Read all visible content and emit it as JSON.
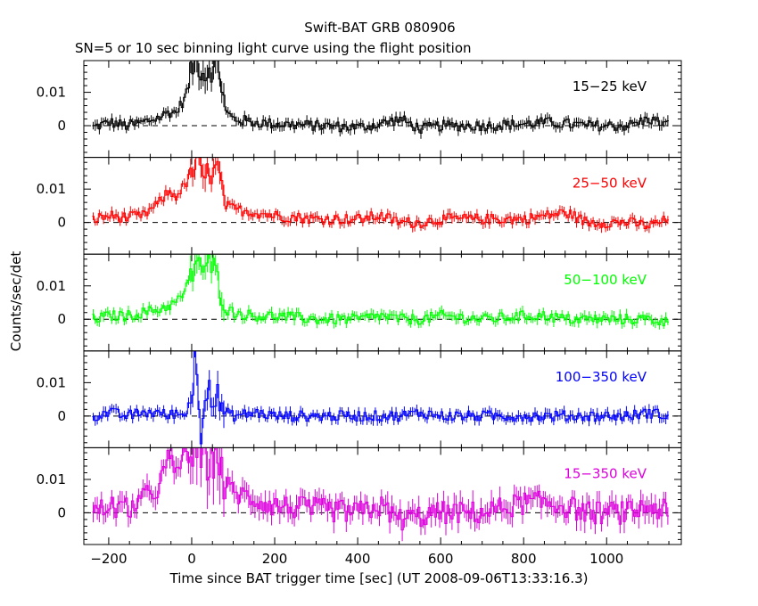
{
  "chart_data": {
    "type": "line",
    "title": "Swift-BAT GRB 080906",
    "subtitle": "SN=5 or 10 sec binning light curve using the flight position",
    "xlabel": "Time since BAT trigger time [sec] (UT 2008-09-06T13:33:16.3)",
    "ylabel": "Counts/sec/det",
    "xlim": [
      -260,
      1180
    ],
    "ylim": [
      -0.0095,
      0.0195
    ],
    "x_ticks": [
      -200,
      0,
      200,
      400,
      600,
      800,
      1000
    ],
    "x_tick_labels": [
      "−200",
      "0",
      "200",
      "400",
      "600",
      "800",
      "1000"
    ],
    "y_ticks": [
      0,
      0.01
    ],
    "y_tick_labels": [
      "0",
      "0.01"
    ],
    "zero_line": "dashed",
    "grid": false,
    "panels": [
      {
        "band": "15−25 keV",
        "color": "#000000",
        "points": [
          [
            -240,
            -0.0005
          ],
          [
            -200,
            0.001
          ],
          [
            -160,
            0.0
          ],
          [
            -120,
            0.001
          ],
          [
            -80,
            0.0025
          ],
          [
            -60,
            0.004
          ],
          [
            -40,
            0.004
          ],
          [
            -20,
            0.008
          ],
          [
            -10,
            0.012
          ],
          [
            0,
            0.018
          ],
          [
            10,
            0.019
          ],
          [
            20,
            0.017
          ],
          [
            30,
            0.015
          ],
          [
            40,
            0.018
          ],
          [
            50,
            0.016
          ],
          [
            60,
            0.019
          ],
          [
            70,
            0.012
          ],
          [
            80,
            0.004
          ],
          [
            100,
            0.002
          ],
          [
            150,
            0.001
          ],
          [
            200,
            0.0005
          ],
          [
            300,
            0.0
          ],
          [
            400,
            -0.0005
          ],
          [
            450,
            0.0005
          ],
          [
            500,
            0.002
          ],
          [
            550,
            -0.001
          ],
          [
            600,
            0.0
          ],
          [
            700,
            0.0
          ],
          [
            800,
            0.0005
          ],
          [
            850,
            0.001
          ],
          [
            900,
            0.0005
          ],
          [
            950,
            0.0
          ],
          [
            1000,
            0.0
          ],
          [
            1050,
            0.0
          ],
          [
            1100,
            0.002
          ],
          [
            1150,
            0.0
          ]
        ]
      },
      {
        "band": "25−50 keV",
        "color": "#ff0000",
        "points": [
          [
            -240,
            0.001
          ],
          [
            -200,
            0.002
          ],
          [
            -160,
            0.0015
          ],
          [
            -120,
            0.002
          ],
          [
            -80,
            0.006
          ],
          [
            -60,
            0.009
          ],
          [
            -40,
            0.008
          ],
          [
            -20,
            0.011
          ],
          [
            0,
            0.015
          ],
          [
            10,
            0.019
          ],
          [
            20,
            0.014
          ],
          [
            30,
            0.013
          ],
          [
            40,
            0.016
          ],
          [
            50,
            0.014
          ],
          [
            60,
            0.017
          ],
          [
            70,
            0.009
          ],
          [
            80,
            0.005
          ],
          [
            100,
            0.004
          ],
          [
            150,
            0.003
          ],
          [
            200,
            0.002
          ],
          [
            300,
            0.001
          ],
          [
            400,
            0.001
          ],
          [
            450,
            0.002
          ],
          [
            500,
            0.0
          ],
          [
            550,
            0.0
          ],
          [
            600,
            0.001
          ],
          [
            700,
            0.001
          ],
          [
            800,
            0.001
          ],
          [
            850,
            0.002
          ],
          [
            900,
            0.003
          ],
          [
            950,
            0.0
          ],
          [
            1000,
            0.0
          ],
          [
            1050,
            0.0
          ],
          [
            1100,
            -0.001
          ],
          [
            1150,
            0.001
          ]
        ]
      },
      {
        "band": "50−100 keV",
        "color": "#00ff00",
        "points": [
          [
            -240,
            0.0
          ],
          [
            -200,
            0.001
          ],
          [
            -160,
            0.001
          ],
          [
            -120,
            0.002
          ],
          [
            -80,
            0.003
          ],
          [
            -60,
            0.004
          ],
          [
            -40,
            0.005
          ],
          [
            -20,
            0.008
          ],
          [
            0,
            0.014
          ],
          [
            10,
            0.019
          ],
          [
            20,
            0.016
          ],
          [
            30,
            0.013
          ],
          [
            40,
            0.018
          ],
          [
            50,
            0.015
          ],
          [
            60,
            0.012
          ],
          [
            70,
            0.008
          ],
          [
            80,
            0.003
          ],
          [
            100,
            0.002
          ],
          [
            150,
            0.001
          ],
          [
            200,
            0.001
          ],
          [
            300,
            0.0
          ],
          [
            400,
            0.0
          ],
          [
            450,
            0.001
          ],
          [
            500,
            0.0
          ],
          [
            550,
            0.0
          ],
          [
            600,
            0.001
          ],
          [
            700,
            0.0
          ],
          [
            800,
            0.001
          ],
          [
            850,
            0.001
          ],
          [
            900,
            0.0
          ],
          [
            950,
            0.0
          ],
          [
            1000,
            0.0
          ],
          [
            1050,
            0.0
          ],
          [
            1100,
            0.0
          ],
          [
            1150,
            -0.001
          ]
        ]
      },
      {
        "band": "100−350 keV",
        "color": "#0000ff",
        "points": [
          [
            -240,
            0.0
          ],
          [
            -200,
            0.001
          ],
          [
            -160,
            0.0
          ],
          [
            -120,
            0.001
          ],
          [
            -80,
            0.001
          ],
          [
            -60,
            0.0
          ],
          [
            -40,
            0.001
          ],
          [
            -20,
            0.0
          ],
          [
            0,
            0.008
          ],
          [
            5,
            0.018
          ],
          [
            10,
            0.012
          ],
          [
            20,
            -0.005
          ],
          [
            30,
            0.008
          ],
          [
            40,
            0.01
          ],
          [
            50,
            0.003
          ],
          [
            60,
            0.006
          ],
          [
            70,
            0.002
          ],
          [
            80,
            0.001
          ],
          [
            100,
            0.0
          ],
          [
            150,
            0.001
          ],
          [
            200,
            0.0
          ],
          [
            300,
            0.0
          ],
          [
            400,
            0.0
          ],
          [
            450,
            0.0
          ],
          [
            500,
            0.0
          ],
          [
            550,
            0.001
          ],
          [
            600,
            0.0
          ],
          [
            700,
            0.0
          ],
          [
            800,
            0.0
          ],
          [
            850,
            0.0
          ],
          [
            900,
            0.0
          ],
          [
            950,
            0.0
          ],
          [
            1000,
            0.0
          ],
          [
            1050,
            0.0
          ],
          [
            1100,
            0.001
          ],
          [
            1150,
            0.0
          ]
        ]
      },
      {
        "band": "15−350 keV",
        "color": "#dd00dd",
        "points": [
          [
            -240,
            0.0
          ],
          [
            -200,
            0.002
          ],
          [
            -160,
            0.001
          ],
          [
            -120,
            0.004
          ],
          [
            -80,
            0.008
          ],
          [
            -60,
            0.016
          ],
          [
            -40,
            0.012
          ],
          [
            -20,
            0.018
          ],
          [
            0,
            0.018
          ],
          [
            10,
            0.019
          ],
          [
            20,
            0.017
          ],
          [
            30,
            0.015
          ],
          [
            40,
            0.018
          ],
          [
            50,
            0.019
          ],
          [
            60,
            0.019
          ],
          [
            70,
            0.013
          ],
          [
            80,
            0.008
          ],
          [
            100,
            0.006
          ],
          [
            150,
            0.004
          ],
          [
            200,
            0.002
          ],
          [
            300,
            0.001
          ],
          [
            400,
            0.0
          ],
          [
            450,
            0.002
          ],
          [
            500,
            -0.002
          ],
          [
            550,
            -0.001
          ],
          [
            600,
            0.0
          ],
          [
            700,
            0.0
          ],
          [
            800,
            0.003
          ],
          [
            850,
            0.003
          ],
          [
            900,
            0.002
          ],
          [
            950,
            0.0
          ],
          [
            1000,
            0.0
          ],
          [
            1050,
            0.0
          ],
          [
            1100,
            0.002
          ],
          [
            1150,
            0.0
          ]
        ]
      }
    ]
  }
}
